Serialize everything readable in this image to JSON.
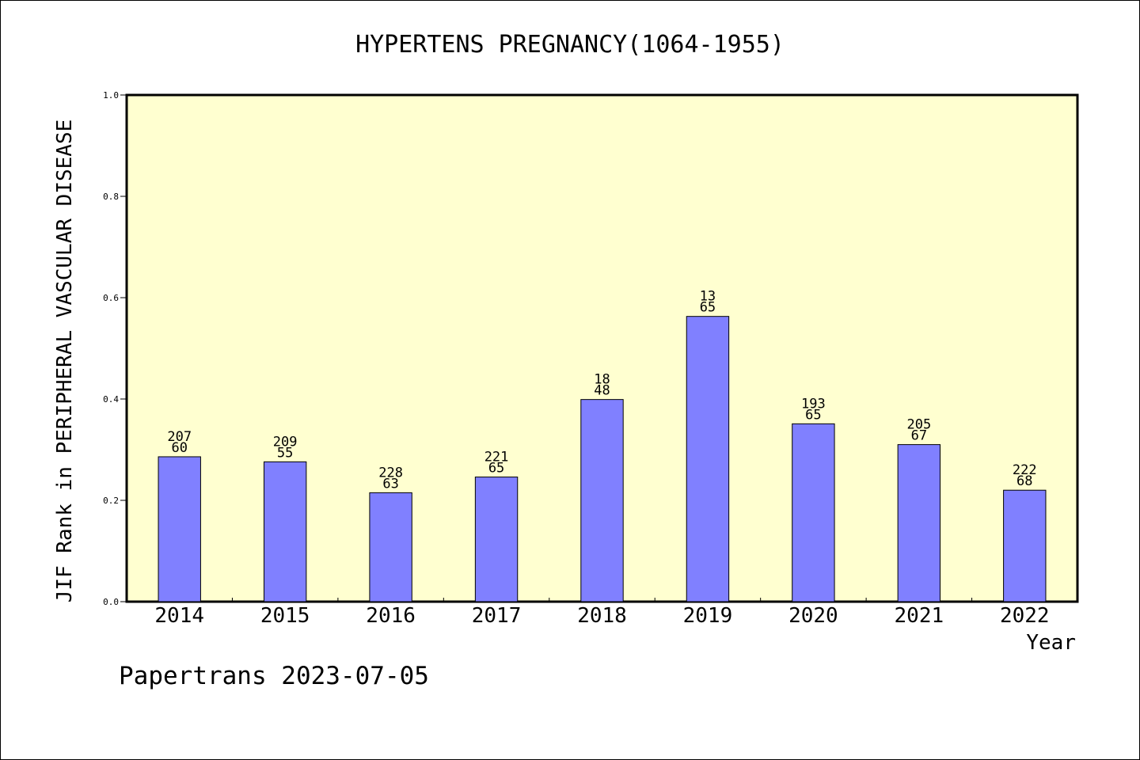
{
  "chart_data": {
    "type": "bar",
    "title": "HYPERTENS PREGNANCY(1064-1955)",
    "ylabel": "JIF Rank in PERIPHERAL VASCULAR DISEASE",
    "xlabel": "Year",
    "ylim": [
      0,
      1.0
    ],
    "yticks": [
      "0.0",
      "0.2",
      "0.4",
      "0.6",
      "0.8",
      "1.0"
    ],
    "grid": false,
    "categories": [
      "2014",
      "2015",
      "2016",
      "2017",
      "2018",
      "2019",
      "2020",
      "2021",
      "2022"
    ],
    "values": [
      0.286,
      0.276,
      0.215,
      0.246,
      0.399,
      0.563,
      0.351,
      0.31,
      0.22
    ],
    "labels_top": [
      "207",
      "209",
      "228",
      "221",
      "18",
      "13",
      "193",
      "205",
      "222"
    ],
    "labels_bottom": [
      "60",
      "55",
      "63",
      "65",
      "48",
      "65",
      "65",
      "67",
      "68"
    ],
    "colors": {
      "plot_bg": "#ffffd0",
      "bar": "#8080ff",
      "bar_edge": "#000000"
    }
  },
  "footer": {
    "credit": "Papertrans 2023-07-05"
  }
}
